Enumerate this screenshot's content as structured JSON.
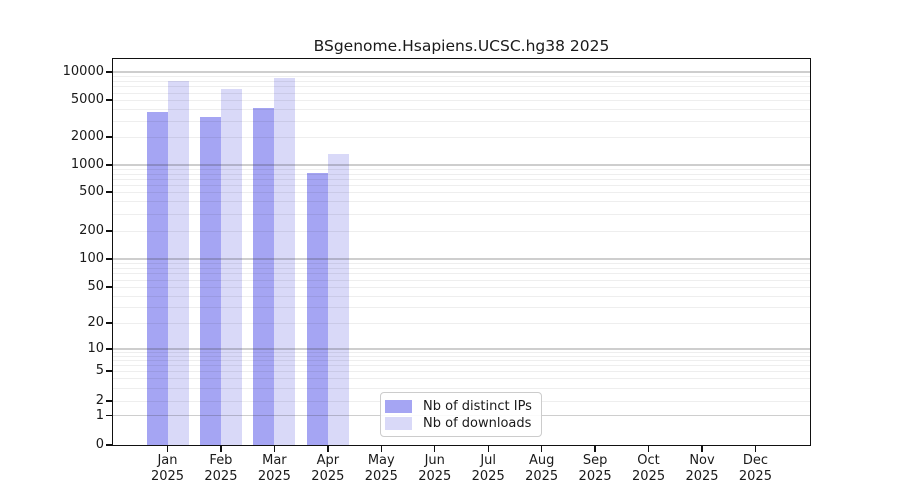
{
  "chart_data": {
    "type": "bar",
    "title": "BSgenome.Hsapiens.UCSC.hg38 2025",
    "categories": [
      {
        "month": "Jan",
        "year": "2025"
      },
      {
        "month": "Feb",
        "year": "2025"
      },
      {
        "month": "Mar",
        "year": "2025"
      },
      {
        "month": "Apr",
        "year": "2025"
      },
      {
        "month": "May",
        "year": "2025"
      },
      {
        "month": "Jun",
        "year": "2025"
      },
      {
        "month": "Jul",
        "year": "2025"
      },
      {
        "month": "Aug",
        "year": "2025"
      },
      {
        "month": "Sep",
        "year": "2025"
      },
      {
        "month": "Oct",
        "year": "2025"
      },
      {
        "month": "Nov",
        "year": "2025"
      },
      {
        "month": "Dec",
        "year": "2025"
      }
    ],
    "series": [
      {
        "name": "Nb of distinct IPs",
        "color": "#a5a5f3",
        "values": [
          3700,
          3250,
          4100,
          820,
          0,
          0,
          0,
          0,
          0,
          0,
          0,
          0
        ]
      },
      {
        "name": "Nb of downloads",
        "color": "#d9d9f8",
        "values": [
          8000,
          6600,
          8700,
          1300,
          0,
          0,
          0,
          0,
          0,
          0,
          0,
          0
        ]
      }
    ],
    "y_axis": {
      "ticks": [
        0,
        1,
        2,
        5,
        10,
        20,
        50,
        100,
        200,
        500,
        1000,
        2000,
        5000,
        10000
      ],
      "scale": "log-with-zero-baseline",
      "range": [
        0,
        10000
      ]
    },
    "x_axis": {
      "tick_count": 12
    },
    "legend": {
      "position": "lower-center"
    },
    "grid": "horizontal-major-and-minor"
  }
}
